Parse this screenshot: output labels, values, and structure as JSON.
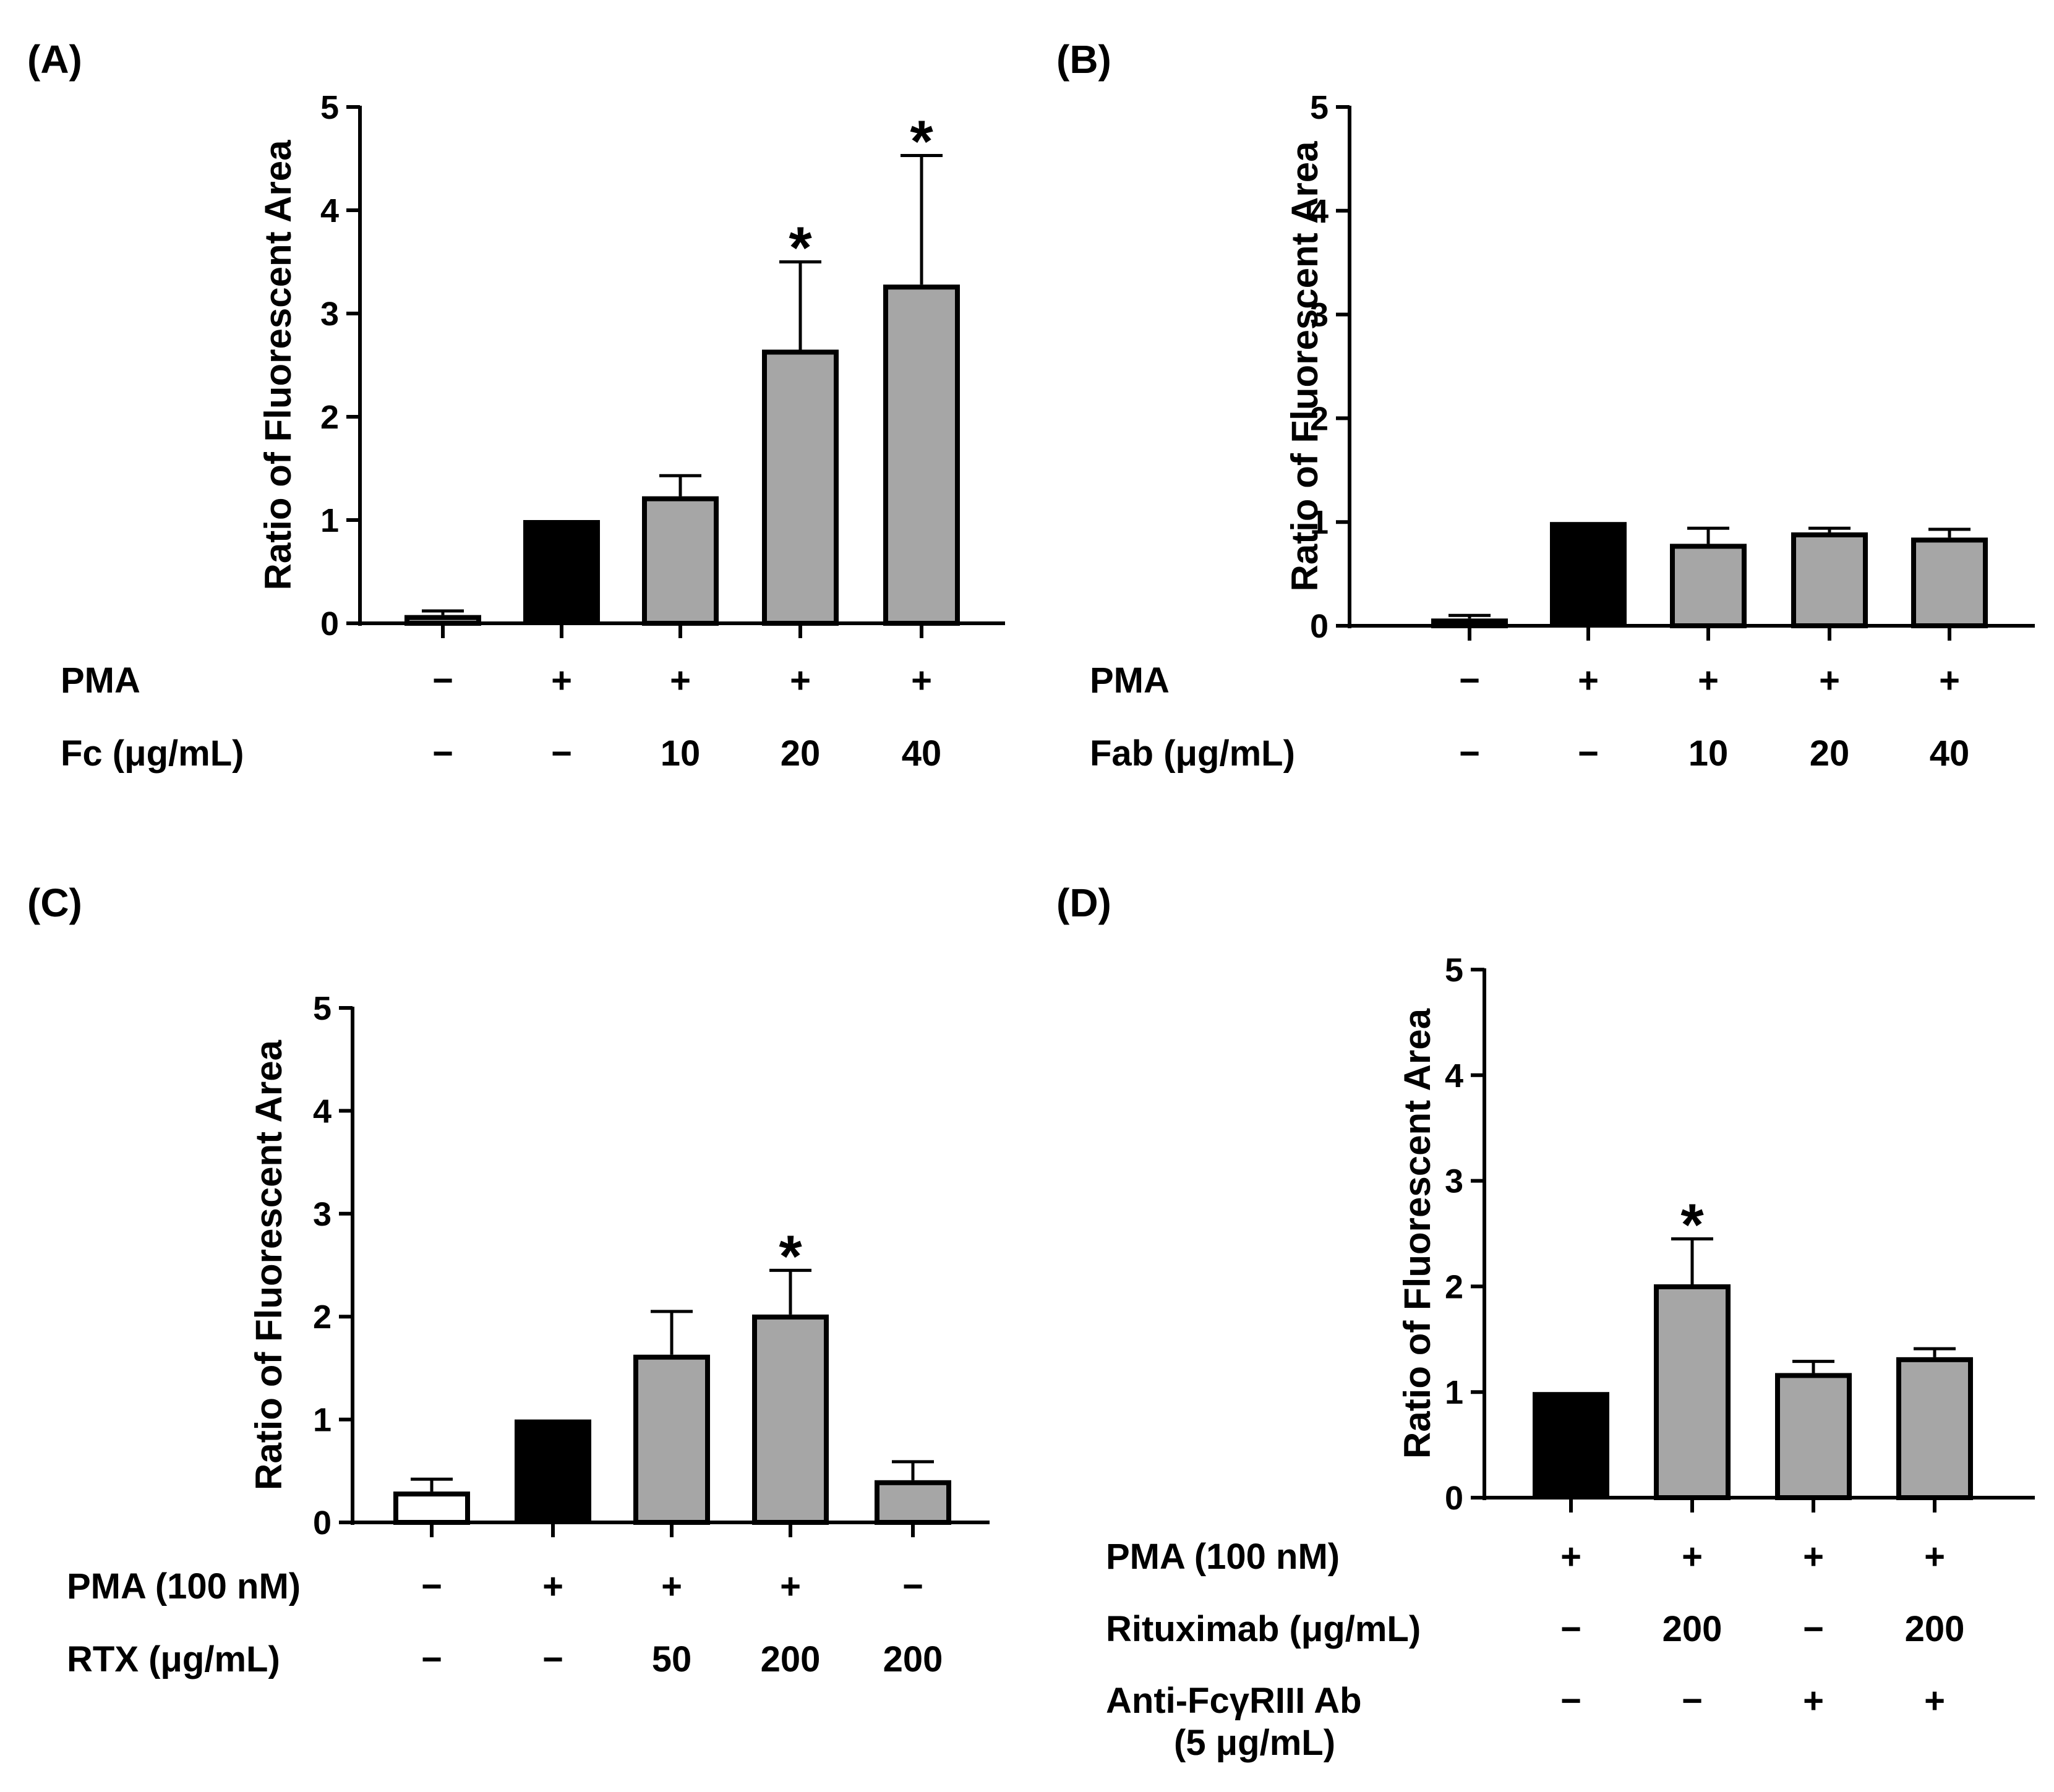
{
  "chart_data": [
    {
      "panel": "(A)",
      "type": "bar",
      "ylabel": "Ratio of Fluorescent Area",
      "ylim": [
        0,
        5
      ],
      "yticks": [
        "0",
        "1",
        "2",
        "3",
        "4",
        "5"
      ],
      "bars": [
        {
          "value": 0.08,
          "error": 0.04,
          "fill": "gray",
          "star": ""
        },
        {
          "value": 1.0,
          "error": 0,
          "fill": "black",
          "star": ""
        },
        {
          "value": 1.23,
          "error": 0.2,
          "fill": "gray",
          "star": ""
        },
        {
          "value": 2.65,
          "error": 0.85,
          "fill": "gray",
          "star": "*"
        },
        {
          "value": 3.28,
          "error": 1.25,
          "fill": "gray",
          "star": "*"
        }
      ],
      "rows": [
        {
          "label": "PMA",
          "cells": [
            "−",
            "+",
            "+",
            "+",
            "+"
          ]
        },
        {
          "label": "Fc (μg/mL)",
          "cells": [
            "−",
            "−",
            "10",
            "20",
            "40"
          ]
        }
      ]
    },
    {
      "panel": "(B)",
      "type": "bar",
      "ylabel": "Ratio of Fluorescent Area",
      "ylim": [
        0,
        5
      ],
      "yticks": [
        "0",
        "1",
        "2",
        "3",
        "4",
        "5"
      ],
      "bars": [
        {
          "value": 0.07,
          "error": 0.03,
          "fill": "gray",
          "star": ""
        },
        {
          "value": 1.0,
          "error": 0,
          "fill": "black",
          "star": ""
        },
        {
          "value": 0.79,
          "error": 0.15,
          "fill": "gray",
          "star": ""
        },
        {
          "value": 0.9,
          "error": 0.04,
          "fill": "gray",
          "star": ""
        },
        {
          "value": 0.85,
          "error": 0.08,
          "fill": "gray",
          "star": ""
        }
      ],
      "rows": [
        {
          "label": "PMA",
          "cells": [
            "−",
            "+",
            "+",
            "+",
            "+"
          ]
        },
        {
          "label": "Fab (μg/mL)",
          "cells": [
            "−",
            "−",
            "10",
            "20",
            "40"
          ]
        }
      ]
    },
    {
      "panel": "(C)",
      "type": "bar",
      "ylabel": "Ratio of Fluorescent Area",
      "ylim": [
        0,
        5
      ],
      "yticks": [
        "0",
        "1",
        "2",
        "3",
        "4",
        "5"
      ],
      "bars": [
        {
          "value": 0.3,
          "error": 0.12,
          "fill": "white",
          "star": ""
        },
        {
          "value": 1.0,
          "error": 0,
          "fill": "black",
          "star": ""
        },
        {
          "value": 1.63,
          "error": 0.42,
          "fill": "gray",
          "star": ""
        },
        {
          "value": 2.02,
          "error": 0.43,
          "fill": "gray",
          "star": "*"
        },
        {
          "value": 0.41,
          "error": 0.18,
          "fill": "gray",
          "star": ""
        }
      ],
      "rows": [
        {
          "label": "PMA (100 nM)",
          "cells": [
            "−",
            "+",
            "+",
            "+",
            "−"
          ]
        },
        {
          "label": "RTX (μg/mL)",
          "cells": [
            "−",
            "−",
            "50",
            "200",
            "200"
          ]
        }
      ]
    },
    {
      "panel": "(D)",
      "type": "bar",
      "ylabel": "Ratio of Fluorescent Area",
      "ylim": [
        0,
        5
      ],
      "yticks": [
        "0",
        "1",
        "2",
        "3",
        "4",
        "5"
      ],
      "bars": [
        {
          "value": 1.0,
          "error": 0,
          "fill": "black",
          "star": ""
        },
        {
          "value": 2.02,
          "error": 0.43,
          "fill": "gray",
          "star": "*"
        },
        {
          "value": 1.18,
          "error": 0.11,
          "fill": "gray",
          "star": ""
        },
        {
          "value": 1.33,
          "error": 0.08,
          "fill": "gray",
          "star": ""
        }
      ],
      "rows": [
        {
          "label": "PMA (100 nM)",
          "cells": [
            "+",
            "+",
            "+",
            "+"
          ]
        },
        {
          "label": "Rituximab (μg/mL)",
          "cells": [
            "−",
            "200",
            "−",
            "200"
          ]
        },
        {
          "label": "Anti-FcγRIII Ab",
          "sublabel": "(5 μg/mL)",
          "cells": [
            "−",
            "−",
            "+",
            "+"
          ]
        }
      ]
    }
  ],
  "colors": {
    "gray": "#a6a6a6",
    "black": "#000000",
    "white": "#ffffff"
  }
}
